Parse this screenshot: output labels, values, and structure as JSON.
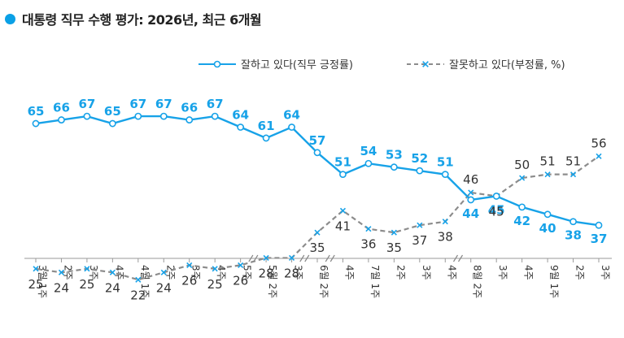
{
  "chart_data": {
    "type": "line",
    "title": "대통령 직무 수행 평가: 2026년, 최근 6개월",
    "series": [
      {
        "name": "잘하고 있다(직무 긍정률)",
        "color": "#17a2e8",
        "style": "solid",
        "marker": "circle",
        "values": [
          65,
          66,
          67,
          65,
          67,
          67,
          66,
          67,
          64,
          61,
          64,
          57,
          51,
          54,
          53,
          52,
          51,
          44,
          45,
          42,
          40,
          38,
          37
        ]
      },
      {
        "name": "잘못하고 있다(부정률, %)",
        "color": "#8c8c8c",
        "style": "dashed",
        "marker": "x",
        "values": [
          25,
          24,
          25,
          24,
          22,
          24,
          26,
          25,
          26,
          28,
          28,
          35,
          41,
          36,
          35,
          37,
          38,
          46,
          45,
          50,
          51,
          51,
          56
        ]
      }
    ],
    "x_ticks": [
      {
        "week": "1주",
        "month": "3월"
      },
      {
        "week": "2주"
      },
      {
        "week": "3주"
      },
      {
        "week": "4주"
      },
      {
        "week": "1주",
        "month": "4월"
      },
      {
        "week": "2주"
      },
      {
        "week": "3주"
      },
      {
        "week": "4주"
      },
      {
        "week": "5주"
      },
      {
        "week": "2주",
        "month": "5월"
      },
      {
        "week": "3주"
      },
      {
        "week": "2주",
        "month": "6월"
      },
      {
        "week": "4주"
      },
      {
        "week": "1주",
        "month": "7월"
      },
      {
        "week": "2주"
      },
      {
        "week": "3주"
      },
      {
        "week": "4주"
      },
      {
        "week": "2주",
        "month": "8월"
      },
      {
        "week": "3주"
      },
      {
        "week": "4주"
      },
      {
        "week": "1주",
        "month": "9월"
      },
      {
        "week": "2주"
      },
      {
        "week": "3주"
      }
    ],
    "breaks_after_index": [
      8,
      10,
      11,
      16
    ],
    "ylim": [
      15,
      75
    ],
    "legend": "top-right"
  }
}
